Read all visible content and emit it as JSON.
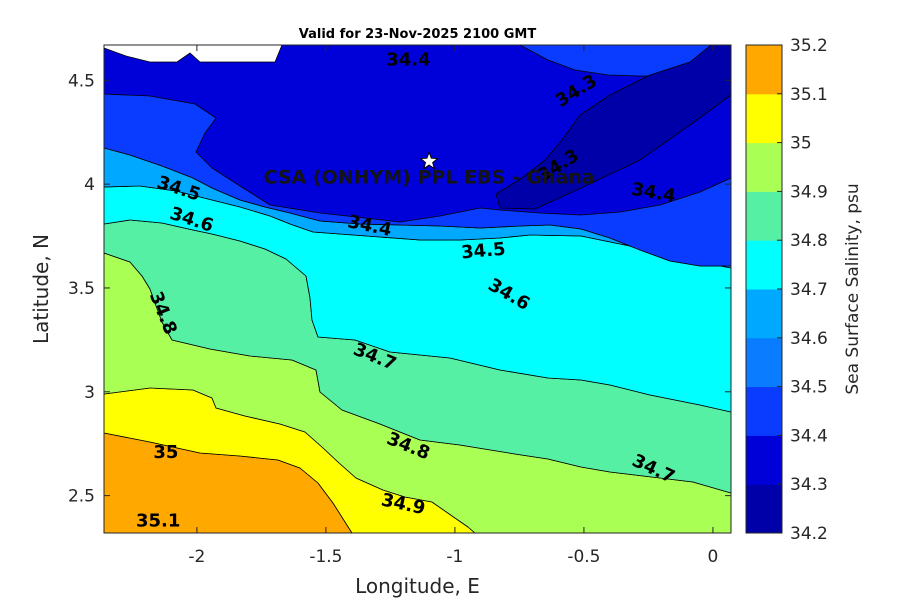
{
  "chart_data": {
    "type": "contour",
    "title": "Valid for 23-Nov-2025 2100 GMT",
    "xlabel": "Longitude, E",
    "ylabel": "Latitude, N",
    "colorbar_label": "Sea Surface Salinity, psu",
    "xlim": [
      -2.36,
      0.07
    ],
    "ylim": [
      2.32,
      4.67
    ],
    "xticks": [
      -2,
      -1.5,
      -1,
      -0.5,
      0
    ],
    "xtick_labels": [
      "-2",
      "-1.5",
      "-1",
      "-0.5",
      "0"
    ],
    "yticks": [
      2.5,
      3,
      3.5,
      4,
      4.5
    ],
    "ytick_labels": [
      "2.5",
      "3",
      "3.5",
      "4",
      "4.5"
    ],
    "levels": [
      34.2,
      34.3,
      34.4,
      34.5,
      34.6,
      34.7,
      34.8,
      34.9,
      35,
      35.1,
      35.2
    ],
    "level_labels": [
      "34.2",
      "34.3",
      "34.4",
      "34.5",
      "34.6",
      "34.7",
      "34.8",
      "34.9",
      "35",
      "35.1",
      "35.2"
    ],
    "colors": [
      "#0000a8",
      "#0000d8",
      "#0a3cff",
      "#0a7cff",
      "#00a8ff",
      "#00ffff",
      "#55f0a4",
      "#aaff55",
      "#ffff00",
      "#ffa800",
      "#ff5200"
    ],
    "contour_labels": [
      {
        "text": "34.4",
        "lon": -1.18,
        "lat": 4.6,
        "angle": 0
      },
      {
        "text": "34.3",
        "lon": -0.53,
        "lat": 4.45,
        "angle": -32
      },
      {
        "text": "34.3",
        "lon": -0.6,
        "lat": 4.09,
        "angle": -32
      },
      {
        "text": "34.4",
        "lon": -0.23,
        "lat": 3.96,
        "angle": 10
      },
      {
        "text": "34.5",
        "lon": -2.07,
        "lat": 3.98,
        "angle": 18
      },
      {
        "text": "34.6",
        "lon": -2.02,
        "lat": 3.83,
        "angle": 18
      },
      {
        "text": "34.4",
        "lon": -1.33,
        "lat": 3.8,
        "angle": 12
      },
      {
        "text": "34.5",
        "lon": -0.89,
        "lat": 3.68,
        "angle": -5
      },
      {
        "text": "34.6",
        "lon": -0.79,
        "lat": 3.47,
        "angle": 30
      },
      {
        "text": "34.8",
        "lon": -2.13,
        "lat": 3.38,
        "angle": 68
      },
      {
        "text": "34.7",
        "lon": -1.31,
        "lat": 3.17,
        "angle": 22
      },
      {
        "text": "34.8",
        "lon": -1.18,
        "lat": 2.74,
        "angle": 22
      },
      {
        "text": "34.7",
        "lon": -0.23,
        "lat": 2.63,
        "angle": 25
      },
      {
        "text": "35",
        "lon": -2.12,
        "lat": 2.71,
        "angle": 0
      },
      {
        "text": "34.9",
        "lon": -1.2,
        "lat": 2.46,
        "angle": 12
      },
      {
        "text": "35.1",
        "lon": -2.15,
        "lat": 2.38,
        "angle": 0
      }
    ],
    "site": {
      "label": "CSA (ONHYM) PPL EBS  - Ghana",
      "lon": -1.1,
      "lat": 4.11,
      "marker": "white-star"
    }
  }
}
